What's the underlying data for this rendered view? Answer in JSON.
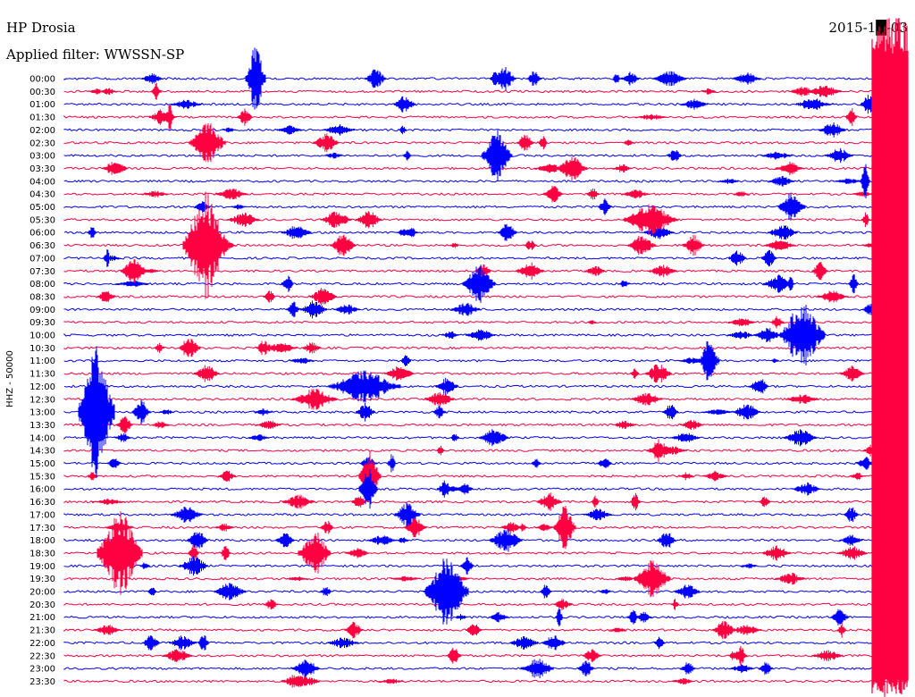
{
  "chart_data": {
    "type": "line",
    "title": "HP Drosia",
    "subtitle": "Applied filter: WWSSN-SP",
    "date": "2015-1█-03",
    "ylabel": "HHZ - 50000",
    "xlabel": "",
    "grid": false,
    "legend": "none",
    "series_colors": [
      "#0000ff",
      "#ff0040"
    ],
    "row_labels": [
      "00:00",
      "00:30",
      "01:00",
      "01:30",
      "02:00",
      "02:30",
      "03:00",
      "03:30",
      "04:00",
      "04:30",
      "05:00",
      "05:30",
      "06:00",
      "06:30",
      "07:00",
      "07:30",
      "08:00",
      "08:30",
      "09:00",
      "09:30",
      "10:00",
      "10:30",
      "11:00",
      "11:30",
      "12:00",
      "12:30",
      "13:00",
      "13:30",
      "14:00",
      "14:30",
      "15:00",
      "15:30",
      "16:00",
      "16:30",
      "17:00",
      "17:30",
      "18:00",
      "18:30",
      "19:00",
      "19:30",
      "20:00",
      "20:30",
      "21:00",
      "21:30",
      "22:00",
      "22:30",
      "23:00",
      "23:30"
    ],
    "x_range": [
      0,
      30
    ],
    "x_unit": "minutes"
  }
}
